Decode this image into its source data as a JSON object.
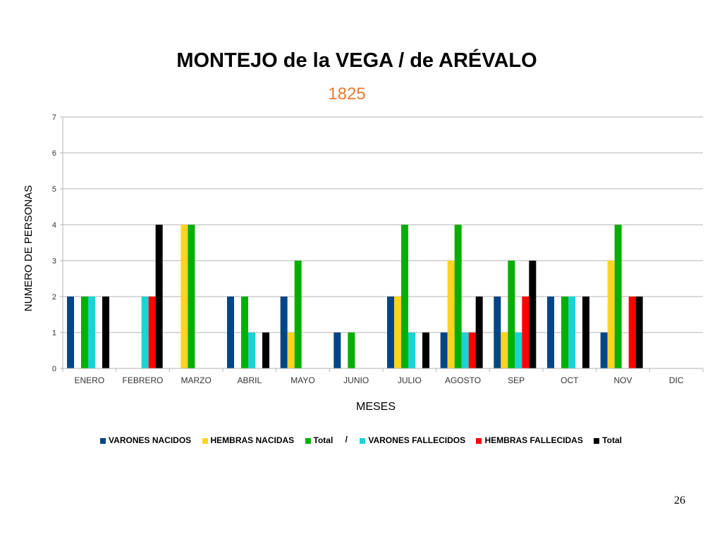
{
  "slide": {
    "title": "MONTEJO de la VEGA / de ARÉVALO",
    "subtitle": "1825",
    "page_number": "26",
    "legend_separator": "/"
  },
  "chart_data": {
    "type": "bar",
    "xlabel": "MESES",
    "ylabel": "NUMERO DE PERSONAS",
    "ylim": [
      0,
      7
    ],
    "yticks": [
      0,
      1,
      2,
      3,
      4,
      5,
      6,
      7
    ],
    "grid": true,
    "legend_position": "bottom",
    "categories": [
      "ENERO",
      "FEBRERO",
      "MARZO",
      "ABRIL",
      "MAYO",
      "JUNIO",
      "JULIO",
      "AGOSTO",
      "SEP",
      "OCT",
      "NOV",
      "DIC"
    ],
    "series": [
      {
        "name": "VARONES NACIDOS",
        "color": "#004586",
        "values": [
          2,
          0,
          0,
          2,
          2,
          1,
          2,
          1,
          2,
          2,
          1,
          0
        ]
      },
      {
        "name": "HEMBRAS NACIDAS",
        "color": "#ffd320",
        "values": [
          0,
          0,
          4,
          0,
          1,
          0,
          2,
          3,
          1,
          0,
          3,
          0
        ]
      },
      {
        "name": "Total",
        "color": "#00b000",
        "values": [
          2,
          0,
          4,
          2,
          3,
          1,
          4,
          4,
          3,
          2,
          4,
          0
        ]
      },
      {
        "name": "VARONES FALLECIDOS",
        "color": "#1ad3d3",
        "values": [
          2,
          2,
          0,
          1,
          0,
          0,
          1,
          1,
          1,
          2,
          0,
          0
        ]
      },
      {
        "name": "HEMBRAS FALLECIDAS",
        "color": "#ff0000",
        "values": [
          0,
          2,
          0,
          0,
          0,
          0,
          0,
          1,
          2,
          0,
          2,
          0
        ]
      },
      {
        "name": "Total",
        "color": "#000000",
        "values": [
          2,
          4,
          0,
          1,
          0,
          0,
          1,
          2,
          3,
          2,
          2,
          0
        ]
      }
    ]
  }
}
